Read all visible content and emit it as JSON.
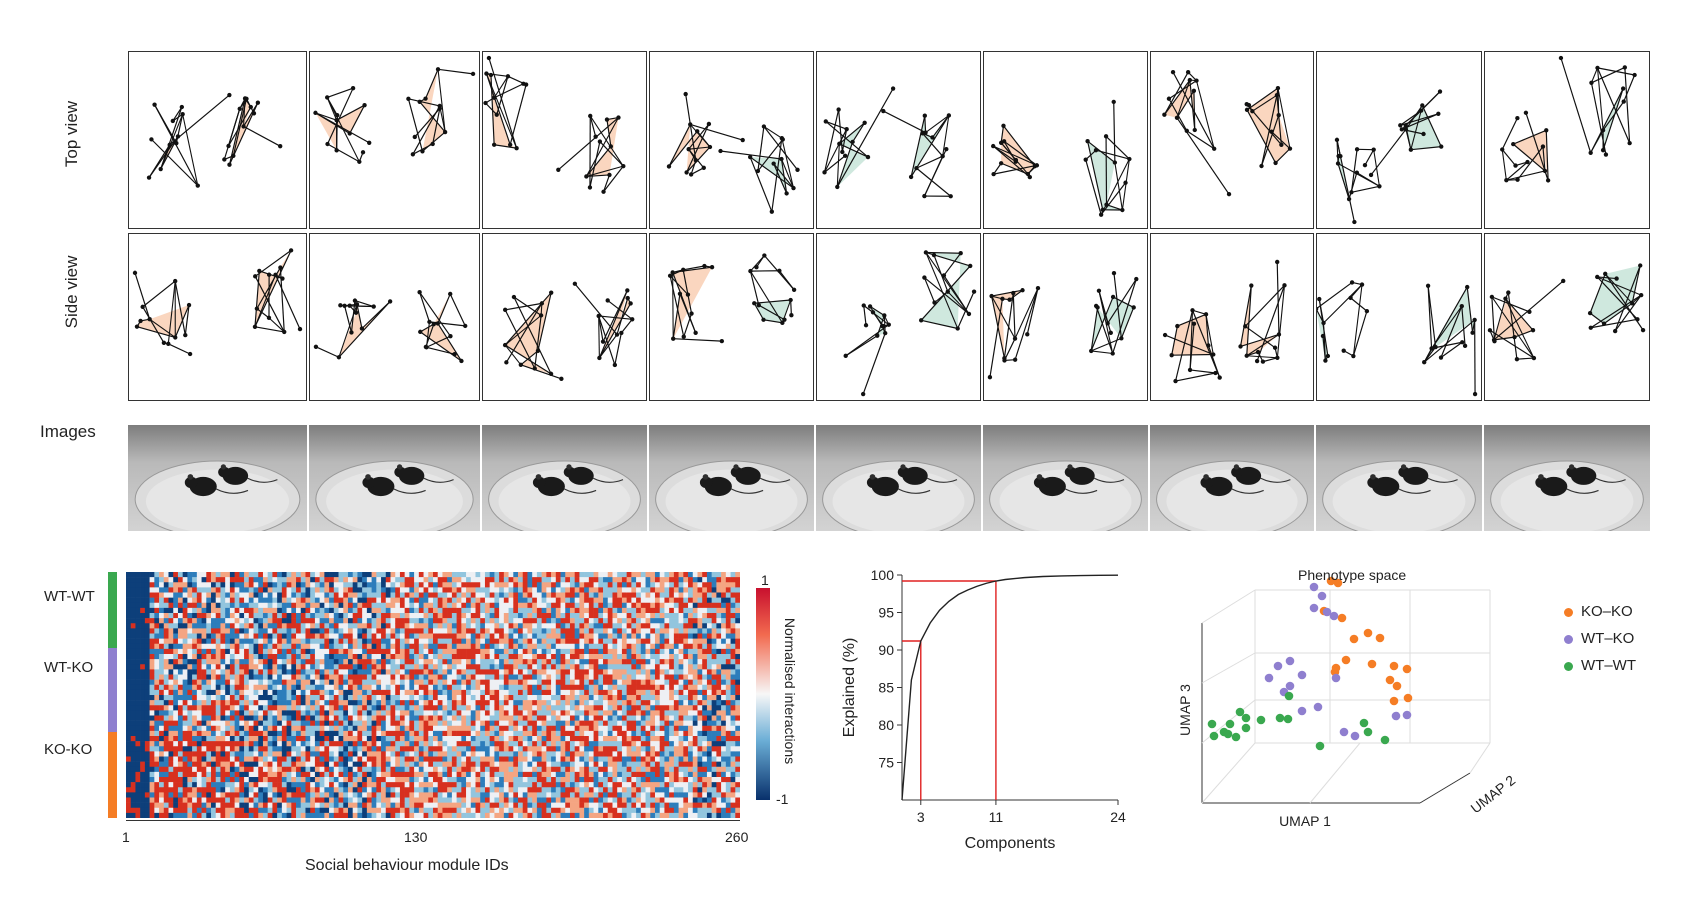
{
  "rows": {
    "top_view": "Top view",
    "side_view": "Side view",
    "images": "Images"
  },
  "heatmap": {
    "groups": [
      "WT-WT",
      "WT-KO",
      "KO-KO"
    ],
    "group_colors": [
      "#3aa84f",
      "#8f7fcf",
      "#f57d25"
    ],
    "x_ticks": [
      "1",
      "130",
      "260"
    ],
    "xlabel": "Social behaviour module IDs",
    "colorbar_label": "Normalised interactions",
    "colorbar_max": "1",
    "colorbar_min": "-1"
  },
  "chart_data": [
    {
      "type": "line",
      "xlabel": "Components",
      "ylabel": "Explained (%)",
      "x_ticks": [
        "3",
        "11",
        "24"
      ],
      "y_ticks": [
        "100",
        "95",
        "90",
        "85",
        "80",
        "75"
      ],
      "xlim": [
        1,
        24
      ],
      "ylim": [
        70,
        100
      ],
      "series": [
        {
          "x": [
            1,
            2,
            3,
            4,
            5,
            6,
            7,
            8,
            9,
            10,
            11,
            12,
            14,
            16,
            18,
            20,
            22,
            24
          ],
          "y": [
            70,
            86,
            91.2,
            93.6,
            95.3,
            96.5,
            97.4,
            98.0,
            98.5,
            98.9,
            99.2,
            99.4,
            99.65,
            99.8,
            99.88,
            99.93,
            99.96,
            99.98
          ]
        }
      ],
      "markers": [
        {
          "x": 3,
          "y": 91.2,
          "color": "#e02020"
        },
        {
          "x": 11,
          "y": 99.2,
          "color": "#e02020"
        }
      ]
    },
    {
      "type": "scatter",
      "title": "Phenotype space",
      "xlabel": "UMAP 1",
      "ylabel": "UMAP 3",
      "zlabel": "UMAP 2",
      "series": [
        {
          "name": "KO–KO",
          "color": "#f57d25"
        },
        {
          "name": "WT–KO",
          "color": "#8f7fcf"
        },
        {
          "name": "WT–WT",
          "color": "#3aa84f"
        }
      ]
    }
  ]
}
